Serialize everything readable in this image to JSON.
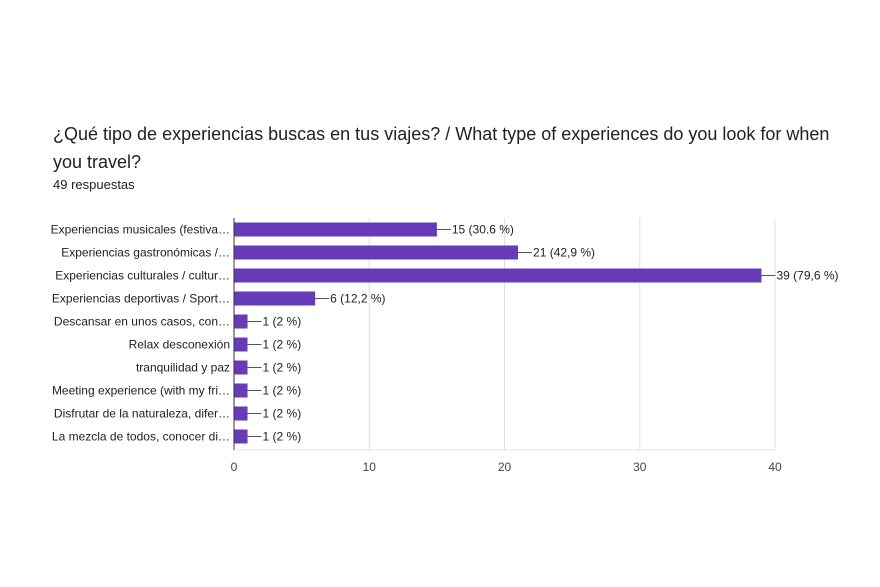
{
  "header": {
    "title": "¿Qué tipo de experiencias buscas en tus viajes? / What type of experiences do you look for when you travel?",
    "responses": "49 respuestas"
  },
  "colors": {
    "bar": "#673ab7",
    "grid": "#e0e0e0",
    "axis": "#333333",
    "leader": "#555555"
  },
  "chart_data": {
    "type": "bar",
    "orientation": "horizontal",
    "categories": [
      "Experiencias musicales (festiva…",
      "Experiencias gastronómicas /…",
      "Experiencias culturales / cultur…",
      "Experiencias deportivas / Sport…",
      "Descansar en unos casos, con…",
      "Relax desconexión",
      "tranquilidad y paz",
      "Meeting experience (with my fri…",
      "Disfrutar de la naturaleza, difer…",
      "La mezcla de todos, conocer di…"
    ],
    "values": [
      15,
      21,
      39,
      6,
      1,
      1,
      1,
      1,
      1,
      1
    ],
    "value_labels": [
      "15 (30.6 %)",
      "21 (42,9 %)",
      "39 (79,6 %)",
      "6 (12,2 %)",
      "1 (2 %)",
      "1 (2 %)",
      "1 (2 %)",
      "1 (2 %)",
      "1 (2 %)",
      "1 (2 %)"
    ],
    "xlim": [
      0,
      40
    ],
    "xticks": [
      "0",
      "10",
      "20",
      "30",
      "40"
    ],
    "grid": true
  }
}
